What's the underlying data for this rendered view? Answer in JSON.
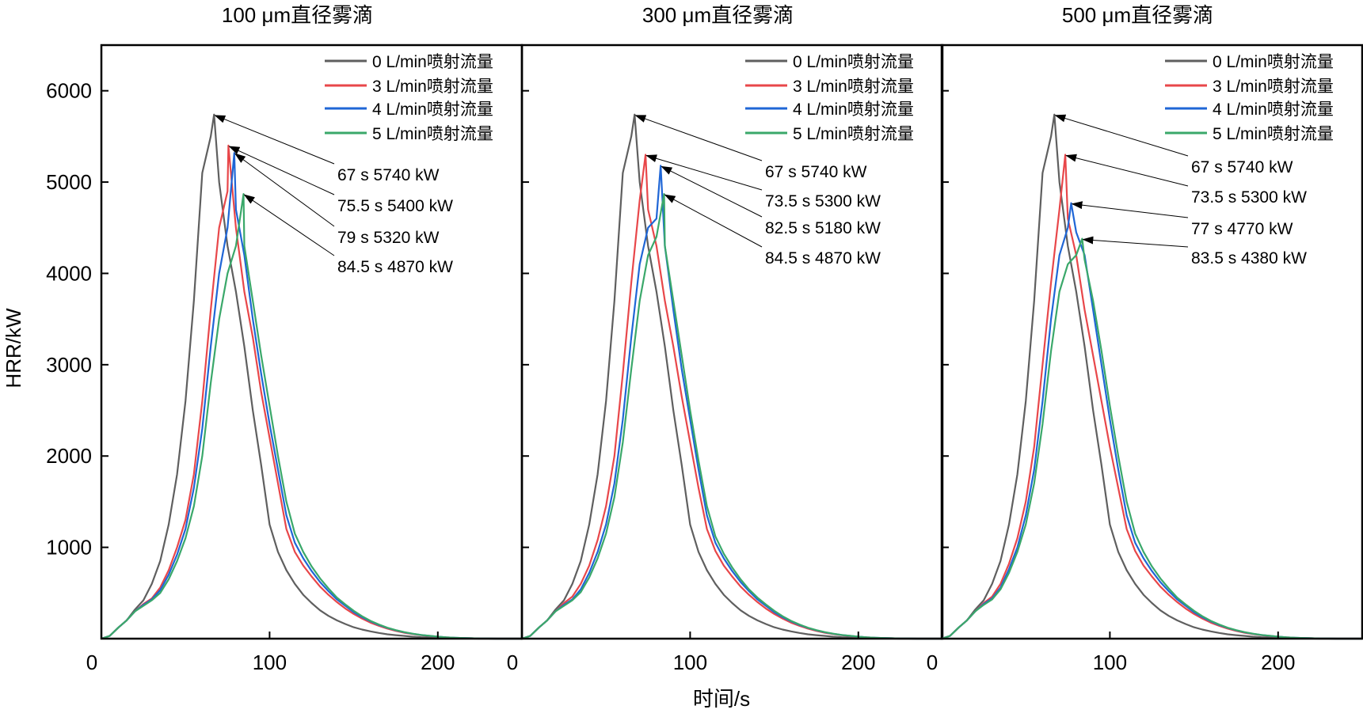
{
  "chart_data": {
    "type": "line",
    "xlabel": "时间/s",
    "ylabel": "HRR/kW",
    "xlim": [
      0,
      250
    ],
    "ylim": [
      0,
      6500
    ],
    "xticks": [
      0,
      100,
      200
    ],
    "yticks": [
      1000,
      2000,
      3000,
      4000,
      5000,
      6000
    ],
    "grid": false,
    "legend_placement": "top-right",
    "colors": {
      "0": "#5f5f5f",
      "3": "#e8474a",
      "4": "#1f66d6",
      "5": "#3aa86a"
    },
    "x": [
      0,
      5,
      10,
      15,
      20,
      25,
      30,
      35,
      40,
      45,
      50,
      55,
      60,
      65,
      70,
      75,
      80,
      85,
      90,
      95,
      100,
      105,
      110,
      115,
      120,
      125,
      130,
      135,
      140,
      145,
      150,
      155,
      160,
      165,
      170,
      175,
      180,
      185,
      190,
      195,
      200,
      205,
      210,
      215,
      220,
      225,
      230,
      235,
      240,
      245,
      250
    ],
    "panels": [
      {
        "title": "100 μm直径雾滴",
        "series": [
          {
            "name": "0 L/min喷射流量",
            "color": "#5f5f5f",
            "peak": [
              67,
              5740
            ],
            "annotation": "67 s 5740 kW",
            "values": [
              0,
              30,
              120,
              200,
              320,
              420,
              600,
              850,
              1250,
              1800,
              2600,
              3700,
              5100,
              5500,
              5000,
              4300,
              3800,
              3200,
              2500,
              1900,
              1250,
              950,
              750,
              600,
              480,
              390,
              310,
              250,
              200,
              160,
              125,
              100,
              80,
              62,
              48,
              38,
              30,
              22,
              16,
              12,
              8,
              5,
              3,
              2,
              1,
              0,
              0,
              0,
              0,
              0,
              0
            ]
          },
          {
            "name": "3 L/min喷射流量",
            "color": "#e8474a",
            "peak": [
              75.5,
              5400
            ],
            "annotation": "75.5 s 5400 kW",
            "values": [
              0,
              30,
              120,
              200,
              300,
              380,
              440,
              560,
              750,
              1000,
              1300,
              1800,
              2600,
              3600,
              4500,
              4900,
              4500,
              3800,
              3300,
              2700,
              2200,
              1700,
              1200,
              950,
              800,
              680,
              570,
              480,
              400,
              330,
              270,
              220,
              175,
              140,
              110,
              85,
              65,
              50,
              38,
              28,
              20,
              14,
              9,
              6,
              4,
              2,
              1,
              0,
              0,
              0,
              0
            ]
          },
          {
            "name": "4 L/min喷射流量",
            "color": "#1f66d6",
            "peak": [
              79,
              5320
            ],
            "annotation": "79 s 5320 kW",
            "values": [
              0,
              30,
              120,
              200,
              300,
              370,
              430,
              530,
              700,
              920,
              1200,
              1650,
              2300,
              3200,
              4000,
              4500,
              4700,
              4200,
              3500,
              2900,
              2350,
              1850,
              1350,
              1050,
              880,
              740,
              620,
              520,
              430,
              360,
              290,
              235,
              190,
              150,
              118,
              92,
              70,
              54,
              40,
              30,
              22,
              15,
              10,
              7,
              4,
              2,
              1,
              0,
              0,
              0,
              0
            ]
          },
          {
            "name": "5 L/min喷射流量",
            "color": "#3aa86a",
            "peak": [
              84.5,
              4870
            ],
            "annotation": "84.5 s 4870 kW",
            "values": [
              0,
              30,
              120,
              200,
              300,
              360,
              420,
              500,
              650,
              850,
              1100,
              1450,
              2000,
              2800,
              3500,
              4000,
              4300,
              4300,
              3700,
              3100,
              2550,
              2000,
              1500,
              1150,
              950,
              790,
              660,
              550,
              450,
              375,
              305,
              245,
              195,
              155,
              120,
              94,
              72,
              55,
              41,
              31,
              22,
              15,
              10,
              7,
              4,
              2,
              1,
              0,
              0,
              0,
              0
            ]
          }
        ]
      },
      {
        "title": "300 μm直径雾滴",
        "series": [
          {
            "name": "0 L/min喷射流量",
            "color": "#5f5f5f",
            "peak": [
              67,
              5740
            ],
            "annotation": "67 s 5740 kW",
            "values": [
              0,
              30,
              120,
              200,
              320,
              420,
              600,
              850,
              1250,
              1800,
              2600,
              3700,
              5100,
              5500,
              5000,
              4300,
              3800,
              3200,
              2500,
              1900,
              1250,
              950,
              750,
              600,
              480,
              390,
              310,
              250,
              200,
              160,
              125,
              100,
              80,
              62,
              48,
              38,
              30,
              22,
              16,
              12,
              8,
              5,
              3,
              2,
              1,
              0,
              0,
              0,
              0,
              0,
              0
            ]
          },
          {
            "name": "3 L/min喷射流量",
            "color": "#e8474a",
            "peak": [
              73.5,
              5300
            ],
            "annotation": "73.5 s 5300 kW",
            "values": [
              0,
              30,
              120,
              200,
              300,
              390,
              460,
              600,
              800,
              1080,
              1450,
              2000,
              2900,
              3900,
              4800,
              4700,
              4300,
              3700,
              3200,
              2650,
              2150,
              1650,
              1200,
              960,
              800,
              680,
              570,
              480,
              400,
              330,
              270,
              220,
              175,
              140,
              110,
              85,
              65,
              50,
              38,
              28,
              20,
              14,
              9,
              6,
              4,
              2,
              1,
              0,
              0,
              0,
              0
            ]
          },
          {
            "name": "4 L/min喷射流量",
            "color": "#1f66d6",
            "peak": [
              82.5,
              5180
            ],
            "annotation": "82.5 s 5180 kW",
            "values": [
              0,
              30,
              120,
              200,
              300,
              370,
              430,
              540,
              720,
              950,
              1250,
              1700,
              2400,
              3300,
              4100,
              4500,
              4600,
              4300,
              3600,
              2950,
              2400,
              1850,
              1350,
              1050,
              880,
              740,
              620,
              520,
              430,
              360,
              290,
              235,
              190,
              150,
              118,
              92,
              70,
              54,
              40,
              30,
              22,
              15,
              10,
              7,
              4,
              2,
              1,
              0,
              0,
              0,
              0
            ]
          },
          {
            "name": "5 L/min喷射流量",
            "color": "#3aa86a",
            "peak": [
              84.5,
              4870
            ],
            "annotation": "84.5 s 4870 kW",
            "values": [
              0,
              30,
              120,
              200,
              300,
              360,
              420,
              510,
              670,
              880,
              1150,
              1550,
              2150,
              2950,
              3700,
              4200,
              4400,
              4300,
              3700,
              3100,
              2500,
              1950,
              1450,
              1120,
              930,
              780,
              650,
              540,
              450,
              375,
              305,
              245,
              195,
              155,
              120,
              94,
              72,
              55,
              41,
              31,
              22,
              15,
              10,
              7,
              4,
              2,
              1,
              0,
              0,
              0,
              0
            ]
          }
        ]
      },
      {
        "title": "500 μm直径雾滴",
        "series": [
          {
            "name": "0 L/min喷射流量",
            "color": "#5f5f5f",
            "peak": [
              67,
              5740
            ],
            "annotation": "67 s 5740 kW",
            "values": [
              0,
              30,
              120,
              200,
              320,
              420,
              600,
              850,
              1250,
              1800,
              2600,
              3700,
              5100,
              5500,
              5000,
              4300,
              3800,
              3200,
              2500,
              1900,
              1250,
              950,
              750,
              600,
              480,
              390,
              310,
              250,
              200,
              160,
              125,
              100,
              80,
              62,
              48,
              38,
              30,
              22,
              16,
              12,
              8,
              5,
              3,
              2,
              1,
              0,
              0,
              0,
              0,
              0,
              0
            ]
          },
          {
            "name": "3 L/min喷射流量",
            "color": "#e8474a",
            "peak": [
              73.5,
              5300
            ],
            "annotation": "73.5 s 5300 kW",
            "values": [
              0,
              30,
              120,
              200,
              300,
              390,
              460,
              600,
              820,
              1100,
              1500,
              2100,
              3000,
              3900,
              4700,
              4600,
              4200,
              3600,
              3100,
              2600,
              2100,
              1650,
              1200,
              960,
              800,
              680,
              570,
              480,
              400,
              330,
              270,
              220,
              175,
              140,
              110,
              85,
              65,
              50,
              38,
              28,
              20,
              14,
              9,
              6,
              4,
              2,
              1,
              0,
              0,
              0,
              0
            ]
          },
          {
            "name": "4 L/min喷射流量",
            "color": "#1f66d6",
            "peak": [
              77,
              4770
            ],
            "annotation": "77 s 4770 kW",
            "values": [
              0,
              30,
              120,
              200,
              300,
              380,
              440,
              560,
              760,
              1000,
              1350,
              1850,
              2600,
              3500,
              4200,
              4500,
              4450,
              4200,
              3600,
              3000,
              2400,
              1850,
              1350,
              1050,
              880,
              740,
              620,
              520,
              430,
              360,
              290,
              235,
              190,
              150,
              118,
              92,
              70,
              54,
              40,
              30,
              22,
              15,
              10,
              7,
              4,
              2,
              1,
              0,
              0,
              0,
              0
            ]
          },
          {
            "name": "5 L/min喷射流量",
            "color": "#3aa86a",
            "peak": [
              83.5,
              4380
            ],
            "annotation": "83.5 s 4380 kW",
            "values": [
              0,
              30,
              120,
              200,
              300,
              370,
              430,
              540,
              720,
              950,
              1250,
              1700,
              2350,
              3150,
              3800,
              4100,
              4200,
              4150,
              3700,
              3150,
              2550,
              2000,
              1500,
              1150,
              950,
              790,
              660,
              550,
              450,
              375,
              305,
              245,
              195,
              155,
              120,
              94,
              72,
              55,
              41,
              31,
              22,
              15,
              10,
              7,
              4,
              2,
              1,
              0,
              0,
              0,
              0
            ]
          }
        ]
      }
    ]
  }
}
